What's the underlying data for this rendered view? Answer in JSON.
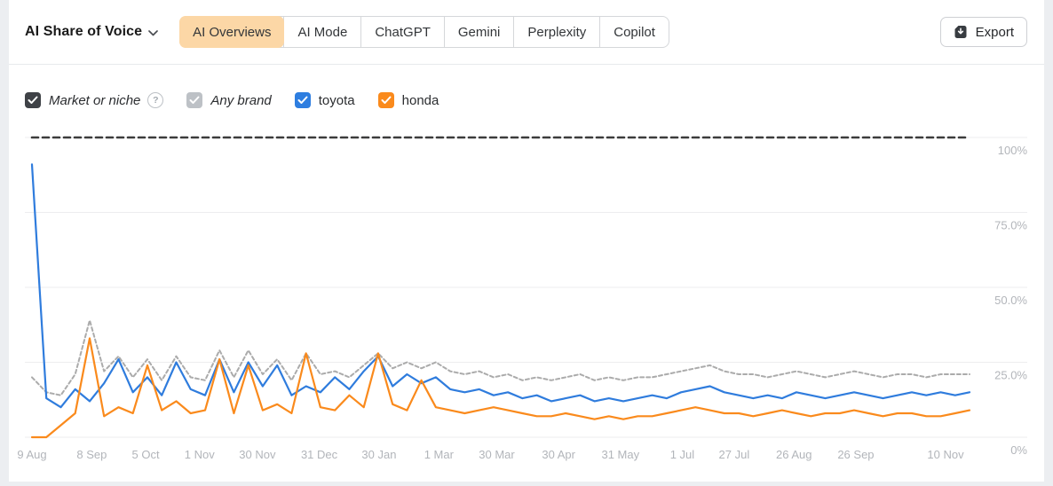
{
  "header": {
    "title": "AI Share of Voice",
    "tabs": [
      {
        "label": "AI Overviews",
        "selected": true
      },
      {
        "label": "AI Mode",
        "selected": false
      },
      {
        "label": "ChatGPT",
        "selected": false
      },
      {
        "label": "Gemini",
        "selected": false
      },
      {
        "label": "Perplexity",
        "selected": false
      },
      {
        "label": "Copilot",
        "selected": false
      }
    ],
    "export_label": "Export"
  },
  "colors": {
    "selected_tab_bg": "#fcd7a6",
    "market_or_niche": "#3f4247",
    "any_brand": "#bdc1c6",
    "toyota": "#2f7cdd",
    "honda": "#fa8a1c",
    "gridline": "#ededef",
    "axis_text": "#b2b5ba"
  },
  "filters": [
    {
      "label": "Market or niche",
      "checked": true,
      "color": "#3f4247",
      "italic": true,
      "help": true
    },
    {
      "label": "Any brand",
      "checked": true,
      "color": "#bdc1c6",
      "italic": true,
      "help": false
    },
    {
      "label": "toyota",
      "checked": true,
      "color": "#2e7ee0",
      "italic": false,
      "help": false
    },
    {
      "label": "honda",
      "checked": true,
      "color": "#fa8a1c",
      "italic": false,
      "help": false
    }
  ],
  "chart_data": {
    "type": "line",
    "title": "AI Share of Voice",
    "unit": "%",
    "ylim": [
      0,
      100
    ],
    "grid": true,
    "legend_position": "none",
    "y_ticks": [
      {
        "label": "100%",
        "value": 100
      },
      {
        "label": "75.0%",
        "value": 75
      },
      {
        "label": "50.0%",
        "value": 50
      },
      {
        "label": "25.0%",
        "value": 25
      },
      {
        "label": "0%",
        "value": 0
      }
    ],
    "x_ticks": [
      {
        "label": "9 Aug",
        "day": 0
      },
      {
        "label": "8 Sep",
        "day": 30
      },
      {
        "label": "5 Oct",
        "day": 57
      },
      {
        "label": "1 Nov",
        "day": 84
      },
      {
        "label": "30 Nov",
        "day": 113
      },
      {
        "label": "31 Dec",
        "day": 144
      },
      {
        "label": "30 Jan",
        "day": 174
      },
      {
        "label": "1 Mar",
        "day": 204
      },
      {
        "label": "30 Mar",
        "day": 233
      },
      {
        "label": "30 Apr",
        "day": 264
      },
      {
        "label": "31 May",
        "day": 295
      },
      {
        "label": "1 Jul",
        "day": 326
      },
      {
        "label": "27 Jul",
        "day": 352
      },
      {
        "label": "26 Aug",
        "day": 382
      },
      {
        "label": "26 Sep",
        "day": 413
      },
      {
        "label": "10 Nov",
        "day": 458
      }
    ],
    "span_days": 470,
    "sampling": "approx weekly values read from plot",
    "series": [
      {
        "name": "Market or niche",
        "color": "#3c3c3c",
        "style": "dashed-bold",
        "values": [
          100,
          100
        ]
      },
      {
        "name": "Any brand",
        "color": "#ababab",
        "style": "dashed",
        "values": [
          20,
          15,
          14,
          21,
          39,
          22,
          27,
          20,
          26,
          19,
          27,
          20,
          19,
          29,
          20,
          29,
          21,
          26,
          19,
          28,
          21,
          22,
          20,
          24,
          28,
          23,
          25,
          23,
          25,
          22,
          21,
          22,
          20,
          21,
          19,
          20,
          19,
          20,
          21,
          19,
          20,
          19,
          20,
          20,
          21,
          22,
          23,
          24,
          22,
          21,
          21,
          20,
          21,
          22,
          21,
          20,
          21,
          22,
          21,
          20,
          21,
          21,
          20,
          21,
          21,
          21
        ]
      },
      {
        "name": "toyota",
        "color": "#2f7cdd",
        "style": "solid",
        "values": [
          91,
          13,
          10,
          16,
          12,
          18,
          26,
          15,
          20,
          14,
          25,
          16,
          14,
          26,
          15,
          25,
          17,
          24,
          14,
          17,
          15,
          20,
          16,
          22,
          27,
          17,
          21,
          18,
          20,
          16,
          15,
          16,
          14,
          15,
          13,
          14,
          12,
          13,
          14,
          12,
          13,
          12,
          13,
          14,
          13,
          15,
          16,
          17,
          15,
          14,
          13,
          14,
          13,
          15,
          14,
          13,
          14,
          15,
          14,
          13,
          14,
          15,
          14,
          15,
          14,
          15
        ]
      },
      {
        "name": "honda",
        "color": "#fa8a1c",
        "style": "solid",
        "values": [
          0,
          0,
          4,
          8,
          33,
          7,
          10,
          8,
          24,
          9,
          12,
          8,
          9,
          26,
          8,
          24,
          9,
          11,
          8,
          28,
          10,
          9,
          14,
          10,
          28,
          11,
          9,
          19,
          10,
          9,
          8,
          9,
          10,
          9,
          8,
          7,
          7,
          8,
          7,
          6,
          7,
          6,
          7,
          7,
          8,
          9,
          10,
          9,
          8,
          8,
          7,
          8,
          9,
          8,
          7,
          8,
          8,
          9,
          8,
          7,
          8,
          8,
          7,
          7,
          8,
          9
        ]
      }
    ]
  }
}
